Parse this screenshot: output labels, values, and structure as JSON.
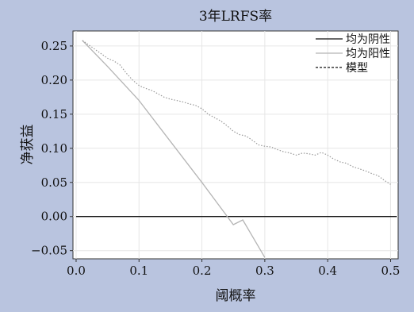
{
  "chart_data": {
    "type": "line",
    "title": "3年LRFS率",
    "xlabel": "阈概率",
    "ylabel": "净获益",
    "xlim": [
      -0.005,
      0.512
    ],
    "ylim": [
      -0.062,
      0.272
    ],
    "xticks": [
      0.0,
      0.1,
      0.2,
      0.3,
      0.4,
      0.5
    ],
    "xtick_labels": [
      "0.0",
      "0.1",
      "0.2",
      "0.3",
      "0.4",
      "0.5"
    ],
    "yticks": [
      -0.05,
      0.0,
      0.05,
      0.1,
      0.15,
      0.2,
      0.25
    ],
    "ytick_labels": [
      "−0.05",
      "0.00",
      "0.05",
      "0.10",
      "0.15",
      "0.20",
      "0.25"
    ],
    "grid": true,
    "legend_position": "top-right",
    "series": [
      {
        "name": "均为阴性",
        "color": "#111111",
        "dash": "solid",
        "x": [
          0.0,
          0.51
        ],
        "y": [
          0.0,
          0.0
        ]
      },
      {
        "name": "均为阳性",
        "color": "#b5b5b5",
        "dash": "solid",
        "x": [
          0.01,
          0.05,
          0.1,
          0.15,
          0.2,
          0.25,
          0.265,
          0.3
        ],
        "y": [
          0.258,
          0.22,
          0.17,
          0.11,
          0.05,
          -0.012,
          -0.005,
          -0.06
        ]
      },
      {
        "name": "模型",
        "color": "#999999",
        "dash": "dotted",
        "x": [
          0.01,
          0.03,
          0.05,
          0.06,
          0.07,
          0.08,
          0.09,
          0.1,
          0.11,
          0.12,
          0.13,
          0.14,
          0.15,
          0.16,
          0.17,
          0.18,
          0.19,
          0.2,
          0.21,
          0.22,
          0.23,
          0.24,
          0.25,
          0.26,
          0.27,
          0.28,
          0.29,
          0.3,
          0.31,
          0.32,
          0.33,
          0.34,
          0.35,
          0.36,
          0.37,
          0.38,
          0.39,
          0.4,
          0.41,
          0.42,
          0.43,
          0.44,
          0.45,
          0.46,
          0.47,
          0.48,
          0.49,
          0.5
        ],
        "y": [
          0.258,
          0.245,
          0.232,
          0.228,
          0.222,
          0.21,
          0.2,
          0.192,
          0.188,
          0.185,
          0.18,
          0.175,
          0.172,
          0.17,
          0.168,
          0.165,
          0.163,
          0.158,
          0.15,
          0.145,
          0.14,
          0.133,
          0.125,
          0.12,
          0.118,
          0.112,
          0.105,
          0.103,
          0.102,
          0.098,
          0.095,
          0.093,
          0.09,
          0.093,
          0.092,
          0.09,
          0.094,
          0.09,
          0.084,
          0.08,
          0.078,
          0.073,
          0.07,
          0.067,
          0.063,
          0.06,
          0.053,
          0.047
        ]
      }
    ]
  }
}
